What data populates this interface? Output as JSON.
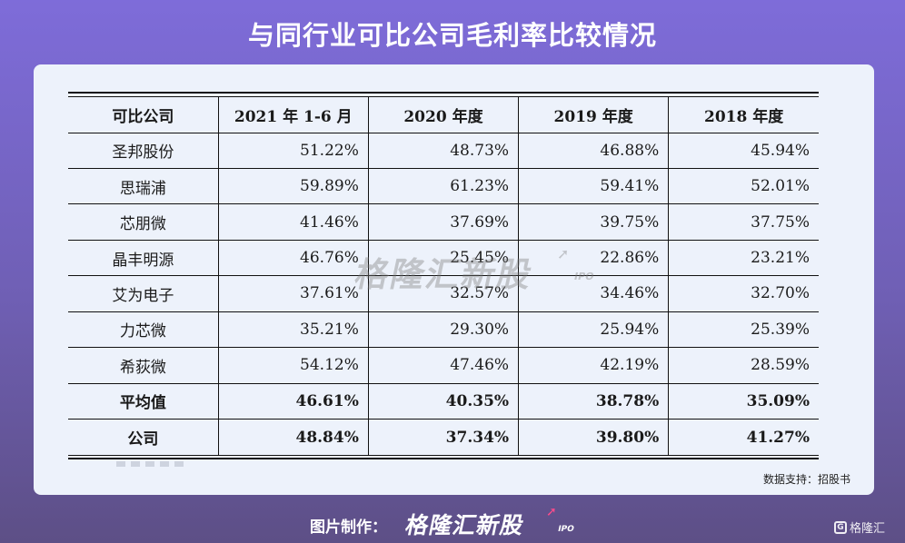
{
  "title": "与同行业可比公司毛利率比较情况",
  "chart_data": {
    "type": "table",
    "columns": [
      "可比公司",
      "2021 年 1-6 月",
      "2020 年度",
      "2019 年度",
      "2018 年度"
    ],
    "rows": [
      {
        "company": "圣邦股份",
        "values": [
          "51.22%",
          "48.73%",
          "46.88%",
          "45.94%"
        ],
        "bold": false
      },
      {
        "company": "思瑞浦",
        "values": [
          "59.89%",
          "61.23%",
          "59.41%",
          "52.01%"
        ],
        "bold": false
      },
      {
        "company": "芯朋微",
        "values": [
          "41.46%",
          "37.69%",
          "39.75%",
          "37.75%"
        ],
        "bold": false
      },
      {
        "company": "晶丰明源",
        "values": [
          "46.76%",
          "25.45%",
          "22.86%",
          "23.21%"
        ],
        "bold": false
      },
      {
        "company": "艾为电子",
        "values": [
          "37.61%",
          "32.57%",
          "34.46%",
          "32.70%"
        ],
        "bold": false
      },
      {
        "company": "力芯微",
        "values": [
          "35.21%",
          "29.30%",
          "25.94%",
          "25.39%"
        ],
        "bold": false
      },
      {
        "company": "希荻微",
        "values": [
          "54.12%",
          "47.46%",
          "42.19%",
          "28.59%"
        ],
        "bold": false
      },
      {
        "company": "平均值",
        "values": [
          "46.61%",
          "40.35%",
          "38.78%",
          "35.09%"
        ],
        "bold": true
      },
      {
        "company": "公司",
        "values": [
          "48.84%",
          "37.34%",
          "39.80%",
          "41.27%"
        ],
        "bold": true
      }
    ]
  },
  "source": "数据支持：招股书",
  "watermark": {
    "text": "格隆汇新股",
    "sub": "IPO"
  },
  "footer": {
    "label": "图片制作：",
    "brand": "格隆汇新股",
    "brand_sub": "IPO"
  },
  "corner_logo": {
    "mark": "G",
    "text": "格隆汇"
  }
}
